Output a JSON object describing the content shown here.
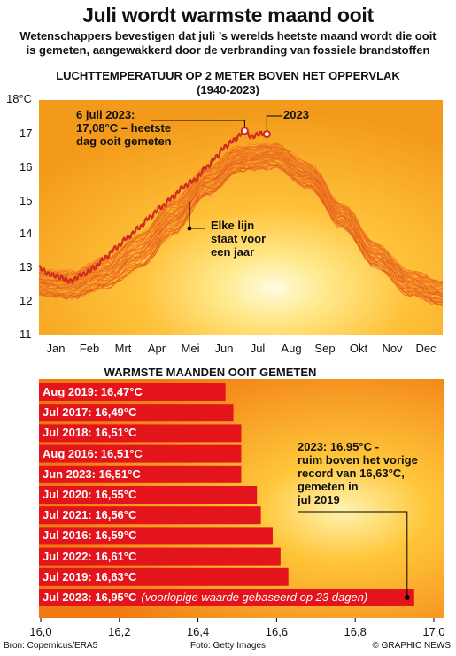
{
  "title": "Juli wordt warmste maand ooit",
  "subtitle_1": "Wetenschappers bevestigen dat juli ’s werelds heetste maand wordt die ooit",
  "subtitle_2": "is gemeten, aangewakkerd door de verbranding van fossiele brandstoffen",
  "colors": {
    "line": "#d12a1e",
    "bar": "#e3141b",
    "bg_light": "#fff6c8",
    "bg_mid": "#ffbe2e",
    "bg_dark": "#f07a12"
  },
  "chart_data": [
    {
      "type": "line",
      "title": "LUCHTTEMPERATUUR OP 2 METER BOVEN HET OPPERVLAK",
      "subtitle": "(1940-2023)",
      "y_unit": "18°C",
      "ylim": [
        11,
        18
      ],
      "y_ticks": [
        "12",
        "13",
        "14",
        "15",
        "16",
        "17"
      ],
      "x_tick_labels": [
        "Jan",
        "Feb",
        "Mrt",
        "Apr",
        "Mei",
        "Jun",
        "Jul",
        "Aug",
        "Sep",
        "Okt",
        "Nov",
        "Dec"
      ],
      "climatology_min": [
        [
          0,
          12.2
        ],
        [
          30,
          12.1
        ],
        [
          60,
          12.4
        ],
        [
          91,
          13.0
        ],
        [
          121,
          14.0
        ],
        [
          152,
          15.2
        ],
        [
          182,
          15.9
        ],
        [
          213,
          16.0
        ],
        [
          244,
          15.4
        ],
        [
          274,
          14.2
        ],
        [
          305,
          13.0
        ],
        [
          335,
          12.2
        ],
        [
          365,
          11.9
        ]
      ],
      "climatology_max": [
        [
          0,
          12.9
        ],
        [
          30,
          12.9
        ],
        [
          60,
          13.3
        ],
        [
          91,
          14.0
        ],
        [
          121,
          15.0
        ],
        [
          152,
          16.0
        ],
        [
          182,
          16.6
        ],
        [
          213,
          16.7
        ],
        [
          244,
          16.1
        ],
        [
          274,
          14.9
        ],
        [
          305,
          13.7
        ],
        [
          335,
          12.9
        ],
        [
          365,
          12.6
        ]
      ],
      "series": [
        {
          "name": "2023",
          "values": [
            [
              0,
              13.0
            ],
            [
              10,
              12.8
            ],
            [
              20,
              12.7
            ],
            [
              28,
              12.6
            ],
            [
              40,
              12.8
            ],
            [
              50,
              13.0
            ],
            [
              60,
              13.3
            ],
            [
              70,
              13.6
            ],
            [
              80,
              13.9
            ],
            [
              91,
              14.2
            ],
            [
              100,
              14.5
            ],
            [
              110,
              14.8
            ],
            [
              121,
              15.1
            ],
            [
              130,
              15.4
            ],
            [
              140,
              15.6
            ],
            [
              152,
              16.0
            ],
            [
              160,
              16.3
            ],
            [
              168,
              16.6
            ],
            [
              176,
              16.8
            ],
            [
              186,
              17.08
            ],
            [
              192,
              16.9
            ],
            [
              200,
              17.0
            ],
            [
              206,
              16.98
            ]
          ]
        }
      ],
      "annotations": [
        {
          "text_1": "6 juli 2023:",
          "text_2": "17,08°C – heetste",
          "text_3": "dag ooit gemeten",
          "x": 186,
          "y": 17.08
        },
        {
          "text": "2023",
          "x": 206,
          "y": 16.98
        },
        {
          "text_1": "Elke lijn",
          "text_2": "staat voor",
          "text_3": "een jaar"
        }
      ]
    },
    {
      "type": "bar",
      "title": "WARMSTE MAANDEN OOIT GEMETEN",
      "orientation": "horizontal",
      "xlim": [
        16.0,
        17.0
      ],
      "x_ticks": [
        "16,0",
        "16,2",
        "16,4",
        "16,6",
        "16,8",
        "17,0"
      ],
      "categories": [
        "Aug 2019: 16,47°C",
        "Jul 2017: 16,49°C",
        "Jul 2018: 16,51°C",
        "Aug 2016: 16,51°C",
        "Jun 2023: 16,51°C",
        "Jul 2020: 16,55°C",
        "Jul 2021: 16,56°C",
        "Jul 2016: 16,59°C",
        "Jul 2022: 16,61°C",
        "Jul 2019: 16,63°C",
        "Jul 2023: 16,95°C"
      ],
      "values": [
        16.47,
        16.49,
        16.51,
        16.51,
        16.51,
        16.55,
        16.56,
        16.59,
        16.61,
        16.63,
        16.95
      ],
      "last_note": "(voorlopige waarde gebaseerd op 23 dagen)",
      "annotation": {
        "line_1": "2023: 16.95°C -",
        "line_2": "ruim boven het vorige",
        "line_3": "record van 16,63°C,",
        "line_4": "gemeten in",
        "line_5": "jul 2019"
      }
    }
  ],
  "footer": {
    "source": "Bron: Copernicus/ERA5",
    "photo": "Foto: Getty Images",
    "credit": "© GRAPHIC NEWS"
  }
}
